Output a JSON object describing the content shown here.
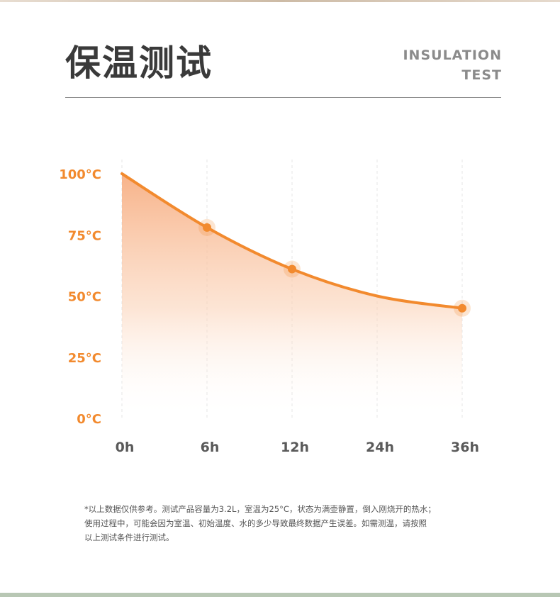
{
  "title_cn": "保温测试",
  "title_en_lines": [
    "INSULATION",
    "TEST"
  ],
  "note_lines": [
    "*以上数据仅供参考。测试产品容量为3.2L，室温为25°C，状态为满壶静置，倒入刚烧开的热水；",
    "使用过程中，可能会因为室温、初始温度、水的多少导致最终数据产生误差。如需测温，请按照",
    "以上测试条件进行测试。"
  ],
  "colors": {
    "accent": "#f28a2e",
    "title": "#3a3a3a",
    "subtitle": "#8b8b8b"
  },
  "chart_data": {
    "type": "area",
    "x": [
      "0h",
      "6h",
      "12h",
      "24h",
      "36h"
    ],
    "y_ticks": [
      "100°C",
      "75°C",
      "50°C",
      "25°C",
      "0°C"
    ],
    "ylim": [
      0,
      100
    ],
    "series": [
      {
        "values": [
          100,
          78,
          61,
          50,
          45
        ],
        "markers": [
          false,
          true,
          true,
          false,
          true
        ]
      }
    ],
    "grid": true
  }
}
